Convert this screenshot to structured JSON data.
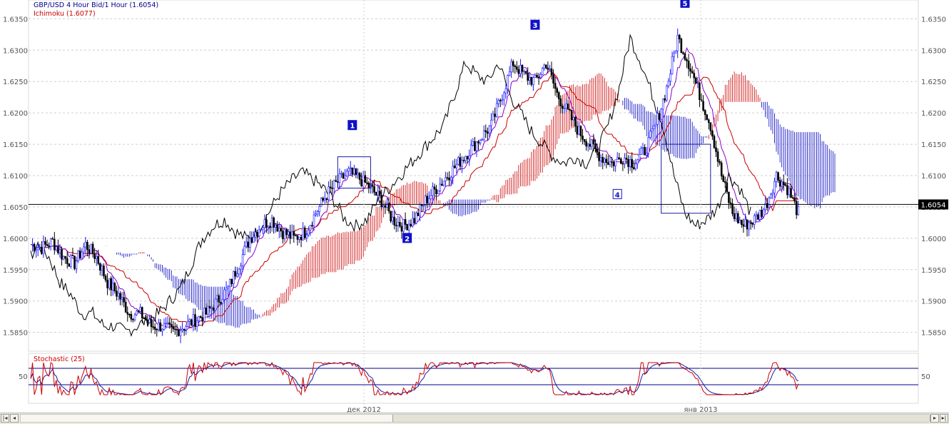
{
  "header": {
    "instrument_title": "GBP/USD 4 Hour Bid/1 Hour (1.6054)",
    "ichimoku_label": "Ichimoku (1.6077)",
    "stochastic_label": "Stochastic (25)"
  },
  "price_axis": {
    "ticks": [
      "1.6350",
      "1.6300",
      "1.6250",
      "1.6200",
      "1.6150",
      "1.6100",
      "1.6050",
      "1.6000",
      "1.5950",
      "1.5900",
      "1.5850"
    ],
    "current_price": "1.6054"
  },
  "stochastic_axis": {
    "level_label": "50"
  },
  "time_axis": {
    "labels": [
      "дек 2012",
      "янв 2013"
    ]
  },
  "wave_labels": [
    "1",
    "2",
    "3",
    "4",
    "5"
  ],
  "colors": {
    "bull_candle": "#1a1aff",
    "bear_candle": "#000000",
    "kijun_red": "#cc0000",
    "tenkan_purple": "#8a00c8",
    "chikou_black": "#000000",
    "bull_cloud": "#cc0000",
    "bear_cloud": "#0000c0",
    "stoch_k": "#cc0000",
    "stoch_d": "#1a1aa0",
    "grid": "#cfcfcf"
  },
  "chart_data": {
    "type": "candlestick",
    "title": "GBP/USD 4 Hour Bid/1 Hour (1.6054)",
    "ylim": [
      1.582,
      1.638
    ],
    "current_price": 1.6054,
    "ichimoku_value": 1.6077,
    "close_path": [
      [
        0,
        1.599
      ],
      [
        6,
        1.5985
      ],
      [
        12,
        1.5995
      ],
      [
        18,
        1.597
      ],
      [
        24,
        1.596
      ],
      [
        30,
        1.599
      ],
      [
        36,
        1.597
      ],
      [
        42,
        1.593
      ],
      [
        48,
        1.591
      ],
      [
        54,
        1.588
      ],
      [
        60,
        1.588
      ],
      [
        66,
        1.586
      ],
      [
        72,
        1.586
      ],
      [
        78,
        1.585
      ],
      [
        84,
        1.586
      ],
      [
        90,
        1.587
      ],
      [
        96,
        1.588
      ],
      [
        102,
        1.59
      ],
      [
        108,
        1.592
      ],
      [
        114,
        1.596
      ],
      [
        120,
        1.6
      ],
      [
        126,
        1.602
      ],
      [
        132,
        1.603
      ],
      [
        138,
        1.601
      ],
      [
        144,
        1.6
      ],
      [
        150,
        1.601
      ],
      [
        156,
        1.604
      ],
      [
        162,
        1.607
      ],
      [
        168,
        1.609
      ],
      [
        174,
        1.6105
      ],
      [
        180,
        1.6095
      ],
      [
        186,
        1.608
      ],
      [
        192,
        1.606
      ],
      [
        198,
        1.603
      ],
      [
        204,
        1.602
      ],
      [
        210,
        1.603
      ],
      [
        216,
        1.606
      ],
      [
        222,
        1.608
      ],
      [
        228,
        1.61
      ],
      [
        234,
        1.612
      ],
      [
        240,
        1.614
      ],
      [
        246,
        1.616
      ],
      [
        252,
        1.618
      ],
      [
        258,
        1.623
      ],
      [
        264,
        1.628
      ],
      [
        270,
        1.626
      ],
      [
        276,
        1.625
      ],
      [
        282,
        1.628
      ],
      [
        288,
        1.623
      ],
      [
        294,
        1.62
      ],
      [
        300,
        1.617
      ],
      [
        306,
        1.615
      ],
      [
        312,
        1.613
      ],
      [
        318,
        1.612
      ],
      [
        324,
        1.613
      ],
      [
        330,
        1.612
      ],
      [
        336,
        1.614
      ],
      [
        342,
        1.618
      ],
      [
        348,
        1.624
      ],
      [
        354,
        1.632
      ],
      [
        360,
        1.628
      ],
      [
        366,
        1.623
      ],
      [
        372,
        1.618
      ],
      [
        378,
        1.61
      ],
      [
        384,
        1.604
      ],
      [
        390,
        1.602
      ],
      [
        396,
        1.603
      ],
      [
        402,
        1.605
      ],
      [
        408,
        1.61
      ],
      [
        414,
        1.608
      ],
      [
        420,
        1.604
      ]
    ],
    "wave_points": [
      {
        "label": "1",
        "t": 176,
        "price": 1.618
      },
      {
        "label": "2",
        "t": 206,
        "price": 1.6
      },
      {
        "label": "3",
        "t": 276,
        "price": 1.634
      },
      {
        "label": "4",
        "t": 321,
        "price": 1.607
      },
      {
        "label": "5",
        "t": 358,
        "price": 1.6375
      }
    ],
    "boxes": [
      {
        "t1": 168,
        "t2": 186,
        "p1": 1.613,
        "p2": 1.608
      },
      {
        "t1": 345,
        "t2": 372,
        "p1": 1.615,
        "p2": 1.604
      }
    ],
    "horizontal_line": 1.6054,
    "stochastic": {
      "period": 25,
      "levels": [
        80,
        20
      ],
      "label_level": 50
    },
    "time_labels": [
      "дек 2012",
      "янв 2013"
    ]
  }
}
